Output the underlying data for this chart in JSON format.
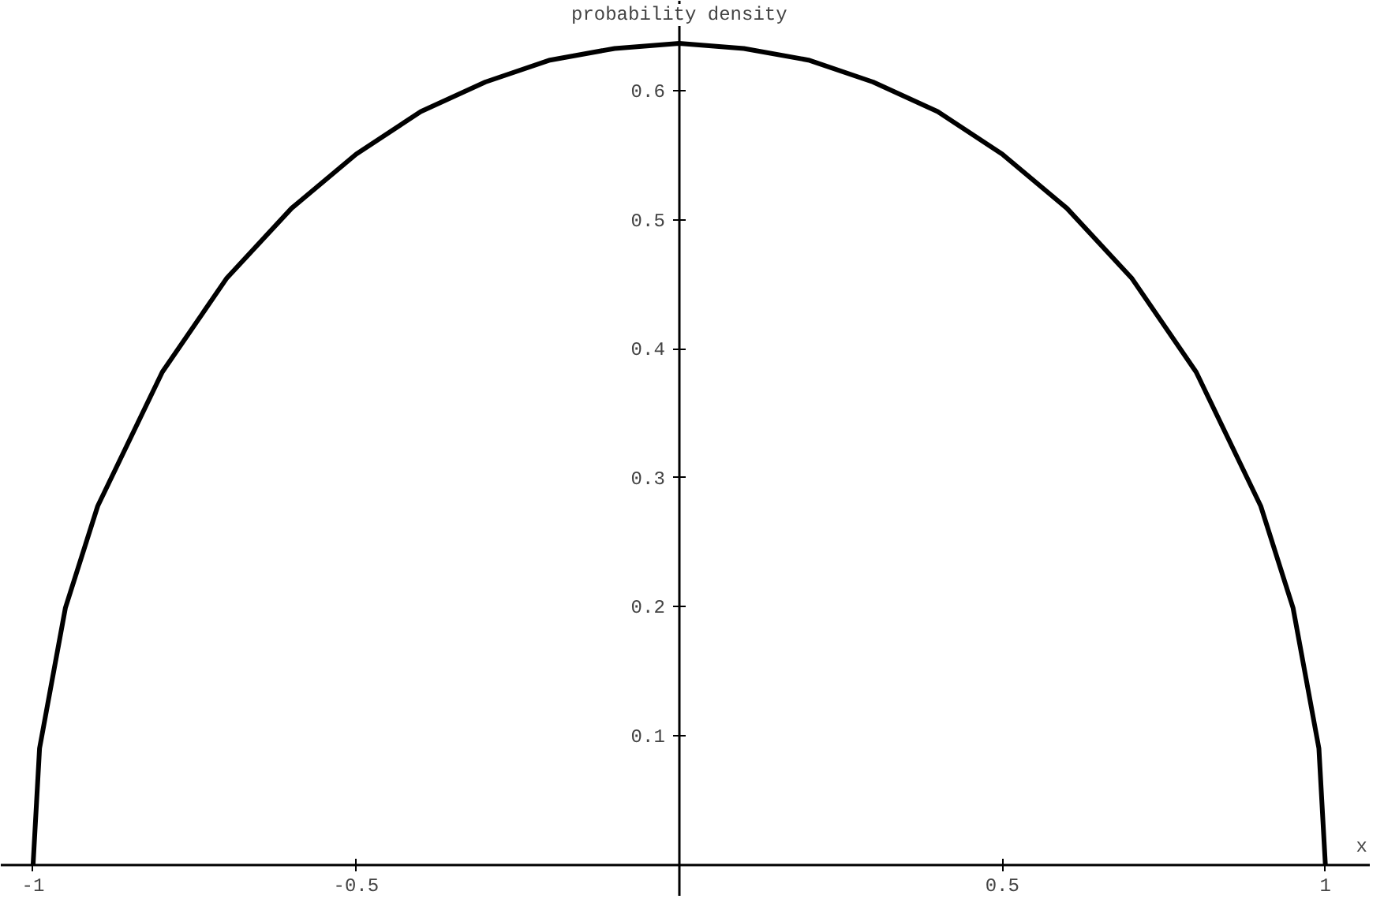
{
  "chart_data": {
    "type": "line",
    "ylabel": "probability density",
    "xlabel": "x",
    "x": [
      -1,
      -0.99,
      -0.95,
      -0.9,
      -0.8,
      -0.7,
      -0.6,
      -0.5,
      -0.4,
      -0.3,
      -0.2,
      -0.1,
      0,
      0.1,
      0.2,
      0.3,
      0.4,
      0.5,
      0.6,
      0.7,
      0.8,
      0.9,
      0.95,
      0.99,
      1
    ],
    "series": [
      {
        "color": "#000000",
        "values": [
          0,
          0.09,
          0.199,
          0.278,
          0.382,
          0.455,
          0.509,
          0.551,
          0.584,
          0.607,
          0.624,
          0.633,
          0.637,
          0.633,
          0.624,
          0.607,
          0.584,
          0.551,
          0.509,
          0.455,
          0.382,
          0.278,
          0.199,
          0.09,
          0
        ]
      }
    ],
    "xlim": [
      -1.05,
      1.07
    ],
    "ylim": [
      -0.025,
      0.67
    ],
    "xticks": [
      -1,
      {
        "value": -0.5,
        "label": "-0.5"
      },
      {
        "value": 0.5,
        "label": "0.5"
      },
      1
    ],
    "yticks": [
      0.1,
      0.2,
      0.3,
      0.4,
      0.5,
      0.6
    ],
    "grid": false,
    "line_style": "solid",
    "marker": "none"
  }
}
